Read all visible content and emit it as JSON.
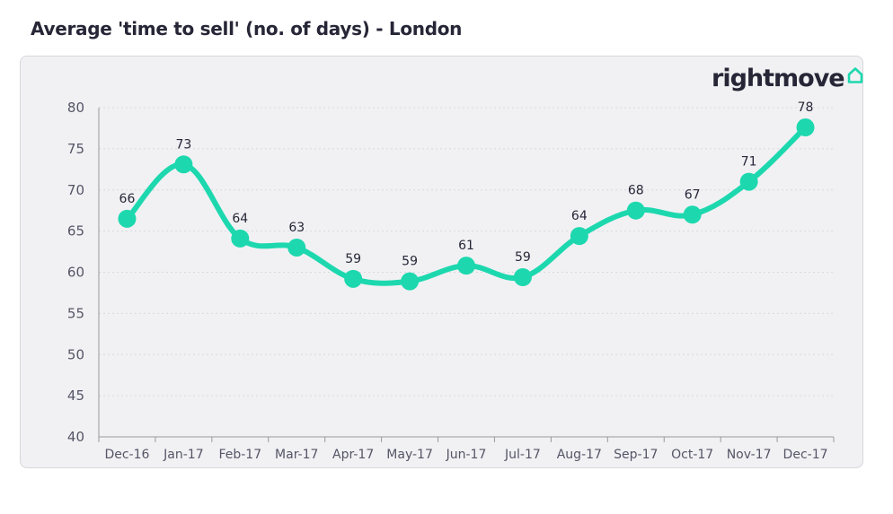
{
  "title": "Average 'time to sell' (no. of days) - London",
  "logo": {
    "text": "rightmove",
    "icon": "house-outline-icon",
    "color": "#1dd8ae"
  },
  "colors": {
    "line": "#1dd8ae",
    "card": "#f1f1f4",
    "grid": "#d8d8de",
    "axis": "#999999"
  },
  "chart_data": {
    "type": "line",
    "categories": [
      "Dec-16",
      "Jan-17",
      "Feb-17",
      "Mar-17",
      "Apr-17",
      "May-17",
      "Jun-17",
      "Jul-17",
      "Aug-17",
      "Sep-17",
      "Oct-17",
      "Nov-17",
      "Dec-17"
    ],
    "series": [
      {
        "values": [
          66.5,
          73.1,
          64.1,
          63.0,
          59.2,
          58.9,
          60.8,
          59.4,
          64.4,
          67.5,
          67.0,
          71.0,
          77.6
        ],
        "labels": [
          "66",
          "73",
          "64",
          "63",
          "59",
          "59",
          "61",
          "59",
          "64",
          "68",
          "67",
          "71",
          "78"
        ]
      }
    ],
    "ylim": [
      40,
      80
    ],
    "yticks": [
      40,
      45,
      50,
      55,
      60,
      65,
      70,
      75,
      80
    ],
    "grid": true,
    "grid_style": "dotted horizontal",
    "legend": "none",
    "xlabel": "",
    "ylabel": ""
  }
}
